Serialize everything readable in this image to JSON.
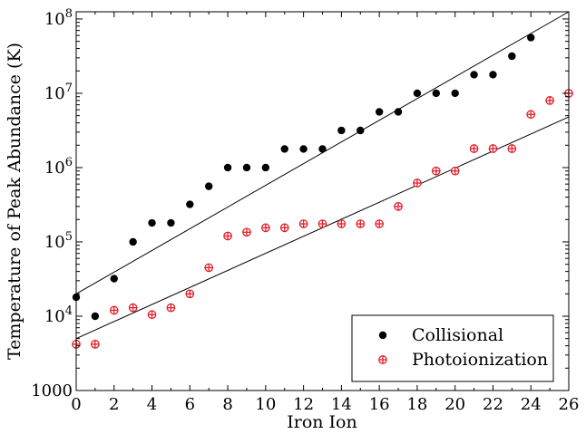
{
  "chart_data": {
    "type": "scatter",
    "xlabel": "Iron Ion",
    "ylabel": "Temperature of Peak Abundance (K)",
    "xlim": [
      0,
      26
    ],
    "ylim": [
      1000,
      125000000
    ],
    "yscale": "log",
    "x_ticks": [
      0,
      2,
      4,
      6,
      8,
      10,
      12,
      14,
      16,
      18,
      20,
      22,
      24,
      26
    ],
    "y_ticks": [
      {
        "value": 1000,
        "base": "1000",
        "exp": ""
      },
      {
        "value": 10000,
        "base": "10",
        "exp": "4"
      },
      {
        "value": 100000,
        "base": "10",
        "exp": "5"
      },
      {
        "value": 1000000,
        "base": "10",
        "exp": "6"
      },
      {
        "value": 10000000,
        "base": "10",
        "exp": "7"
      },
      {
        "value": 100000000,
        "base": "10",
        "exp": "8"
      }
    ],
    "grid": false,
    "legend_position": "bottom-right",
    "series": [
      {
        "name": "Collisional",
        "marker": "filled-circle",
        "color": "#000000",
        "x": [
          0,
          1,
          2,
          3,
          4,
          5,
          6,
          7,
          8,
          9,
          10,
          11,
          12,
          13,
          14,
          15,
          16,
          17,
          18,
          19,
          20,
          21,
          22,
          23,
          24
        ],
        "y": [
          18000,
          10000,
          32000,
          100000,
          180000,
          180000,
          320000,
          560000,
          1000000,
          1000000,
          1000000,
          1780000,
          1780000,
          1780000,
          3160000,
          3160000,
          5620000,
          5620000,
          10000000,
          10000000,
          10000000,
          17800000,
          17800000,
          31600000,
          56200000
        ],
        "fit": {
          "x": [
            0,
            26
          ],
          "y": [
            20000,
            125000000
          ]
        }
      },
      {
        "name": "Photoionization",
        "marker": "open-circle-plus",
        "color": "#e0202a",
        "x": [
          0,
          1,
          2,
          3,
          4,
          5,
          6,
          7,
          8,
          9,
          10,
          11,
          12,
          13,
          14,
          15,
          16,
          17,
          18,
          19,
          20,
          21,
          22,
          23,
          24,
          25,
          26
        ],
        "y": [
          4200,
          4200,
          12000,
          13000,
          10500,
          13000,
          20000,
          45000,
          120000,
          135000,
          155000,
          155000,
          175000,
          175000,
          175000,
          175000,
          175000,
          300000,
          620000,
          900000,
          900000,
          1800000,
          1800000,
          1800000,
          5200000,
          8000000,
          10000000
        ],
        "fit": {
          "x": [
            0,
            26
          ],
          "y": [
            5000,
            4800000
          ]
        }
      }
    ]
  }
}
